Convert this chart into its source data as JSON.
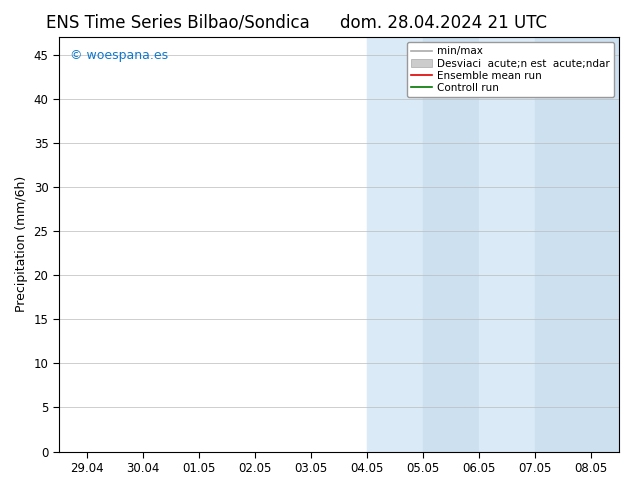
{
  "title_left": "ENS Time Series Bilbao/Sondica",
  "title_right": "dom. 28.04.2024 21 UTC",
  "ylabel": "Precipitation (mm/6h)",
  "ylim": [
    0,
    47
  ],
  "yticks": [
    0,
    5,
    10,
    15,
    20,
    25,
    30,
    35,
    40,
    45
  ],
  "xtick_labels": [
    "29.04",
    "30.04",
    "01.05",
    "02.05",
    "03.05",
    "04.05",
    "05.05",
    "06.05",
    "07.05",
    "08.05"
  ],
  "shade_color": "#daeaf7",
  "shade_color2": "#cce0f0",
  "bg_color": "#ffffff",
  "watermark_text": "© woespana.es",
  "watermark_color": "#1177cc",
  "title_fontsize": 12,
  "axis_fontsize": 9,
  "tick_fontsize": 8.5,
  "legend_fontsize": 7.5
}
